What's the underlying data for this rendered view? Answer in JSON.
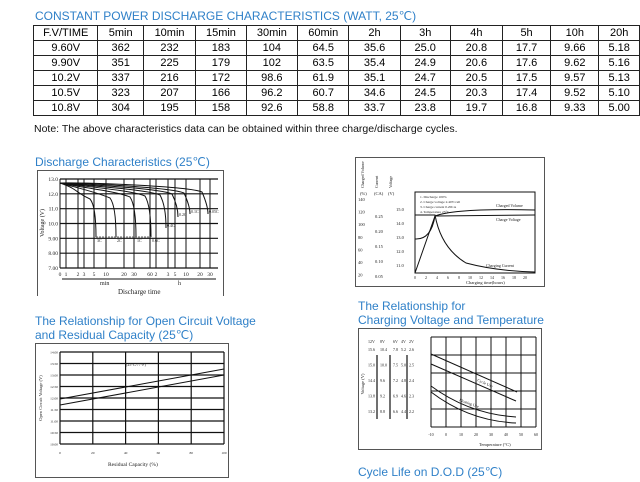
{
  "table": {
    "title": "CONSTANT POWER DISCHARGE CHARACTERISTICS (WATT, 25℃)",
    "headers": [
      "F.V/TIME",
      "5min",
      "10min",
      "15min",
      "30min",
      "60min",
      "2h",
      "3h",
      "4h",
      "5h",
      "10h",
      "20h"
    ],
    "rows": [
      [
        "9.60V",
        "362",
        "232",
        "183",
        "104",
        "64.5",
        "35.6",
        "25.0",
        "20.8",
        "17.7",
        "9.66",
        "5.18"
      ],
      [
        "9.90V",
        "351",
        "225",
        "179",
        "102",
        "63.5",
        "35.4",
        "24.9",
        "20.6",
        "17.6",
        "9.62",
        "5.16"
      ],
      [
        "10.2V",
        "337",
        "216",
        "172",
        "98.6",
        "61.9",
        "35.1",
        "24.7",
        "20.5",
        "17.5",
        "9.57",
        "5.13"
      ],
      [
        "10.5V",
        "323",
        "207",
        "166",
        "96.2",
        "60.7",
        "34.6",
        "24.5",
        "20.3",
        "17.4",
        "9.52",
        "5.10"
      ],
      [
        "10.8V",
        "304",
        "195",
        "158",
        "92.6",
        "58.8",
        "33.7",
        "23.8",
        "19.7",
        "16.8",
        "9.33",
        "5.00"
      ]
    ],
    "note": "Note: The above characteristics data can be obtained within three charge/discharge cycles."
  },
  "discharge": {
    "title": "Discharge Characteristics (25℃)",
    "ylabel": "Voltage (V)",
    "yticks": [
      "13.0",
      "12.0",
      "11.0",
      "10.0",
      "9.00",
      "8.00",
      "7.00"
    ],
    "xticks": [
      "0",
      "1",
      "2",
      "3",
      "5",
      "10",
      "20",
      "30",
      "60",
      "2",
      "3",
      "5",
      "10",
      "20",
      "30"
    ],
    "min": "min",
    "h": "h",
    "xlabel": "Discharge time",
    "curves": [
      "3C",
      "2C",
      "1C",
      "0.6C",
      "0.4C",
      "0.2C",
      "0.1C",
      "0.05C"
    ]
  },
  "charging": {
    "axis_labels": [
      "Charged Volume",
      "Current",
      "Voltage"
    ],
    "units": [
      "(%)",
      "(CA)",
      "(V)"
    ],
    "pct": [
      "140",
      "120",
      "100",
      "80",
      "60",
      "40",
      "20",
      "0"
    ],
    "ca": [
      "0.25",
      "0.20",
      "0.15",
      "0.10",
      "0.05",
      "0"
    ],
    "v": [
      "15.0",
      "14.0",
      "13.0",
      "12.0",
      "11.0"
    ],
    "notes": [
      "1. Discharge 100%",
      "2. Charge voltage 2.40V/cell",
      "3. Charge current 0.20CA",
      "4. Temperature 25°C"
    ],
    "series": [
      "Charged Volume",
      "Charge Voltage",
      "Charging Current"
    ],
    "xticks": [
      "0",
      "2",
      "4",
      "6",
      "8",
      "10",
      "12",
      "14",
      "16",
      "18",
      "20"
    ],
    "xlabel": "Charging time(hours)"
  },
  "ocv": {
    "title1": "The Relationship for Open Circuit Voltage",
    "title2": "and Residual Capacity (25℃)",
    "ylabel": "Open Circuit Voltage (V)",
    "yticks": [
      "14.00",
      "13.50",
      "13.00",
      "12.50",
      "12.00",
      "11.50",
      "11.00",
      "10.50",
      "10.00"
    ],
    "xticks": [
      "0",
      "20",
      "40",
      "60",
      "80",
      "100"
    ],
    "xlabel": "Residual Capacity (%)",
    "annotation": "(25°C/77°F)"
  },
  "cvt": {
    "title1": "The Relationship for",
    "title2": "Charging Voltage and Temperature",
    "ylabel": "Voltage (V)",
    "cols": [
      "12V",
      "8V",
      "6V",
      "4V",
      "2V"
    ],
    "rows": [
      [
        "15.6",
        "10.4",
        "7.8",
        "5.2",
        "2.6"
      ],
      [
        "15.0",
        "10.0",
        "7.5",
        "5.0",
        "2.5"
      ],
      [
        "14.4",
        "9.6",
        "7.2",
        "4.8",
        "2.4"
      ],
      [
        "13.8",
        "9.2",
        "6.9",
        "4.6",
        "2.3"
      ],
      [
        "13.2",
        "8.8",
        "6.6",
        "4.4",
        "2.2"
      ]
    ],
    "xticks": [
      "-10",
      "0",
      "10",
      "20",
      "30",
      "40",
      "50",
      "60"
    ],
    "xlabel": "Temperature (°C)",
    "series": [
      "Cycle Use",
      "Floating Use"
    ]
  },
  "cycle": {
    "title": "Cycle Life on D.O.D (25℃)"
  },
  "colors": {
    "heading": "#2f80c8"
  }
}
